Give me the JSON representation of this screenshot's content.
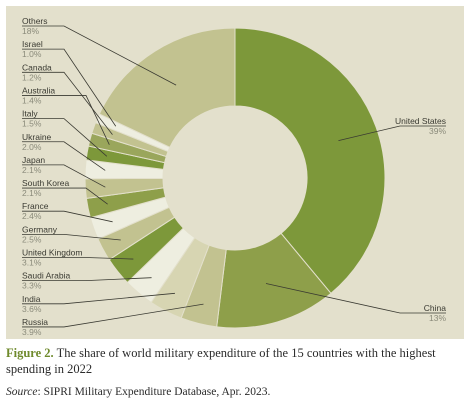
{
  "chart_data": {
    "type": "pie",
    "style": "donut",
    "categories": [
      "United States",
      "China",
      "Russia",
      "India",
      "Saudi Arabia",
      "United Kingdom",
      "Germany",
      "France",
      "South Korea",
      "Japan",
      "Ukraine",
      "Italy",
      "Australia",
      "Canada",
      "Israel",
      "Others"
    ],
    "values": [
      39,
      13,
      3.9,
      3.6,
      3.3,
      3.1,
      2.5,
      2.4,
      2.1,
      2.1,
      2.0,
      1.5,
      1.4,
      1.2,
      1.0,
      18
    ],
    "value_labels": [
      "39%",
      "13%",
      "3.9%",
      "3.6%",
      "3.3%",
      "3.1%",
      "2.5%",
      "2.4%",
      "2.1%",
      "2.1%",
      "2.0%",
      "1.5%",
      "1.4%",
      "1.2%",
      "1.0%",
      "18%"
    ],
    "colors": [
      "#7d983a",
      "#8e9f4a",
      "#c2c290",
      "#d7d5b2",
      "#eeeee0",
      "#7d983a",
      "#c2c290",
      "#eeeee0",
      "#8e9f4a",
      "#c2c290",
      "#eeeee0",
      "#7d983a",
      "#9aa65c",
      "#c2c290",
      "#eeeee0",
      "#c2c290"
    ],
    "background": "#e3e0cc",
    "legend": "none"
  },
  "caption": {
    "label": "Figure 2.",
    "text": " The share of world military expenditure of the 15 countries with the highest spending in 2022"
  },
  "source": {
    "label": "Source",
    "text": ": SIPRI Military Expenditure Database, Apr. 2023."
  }
}
